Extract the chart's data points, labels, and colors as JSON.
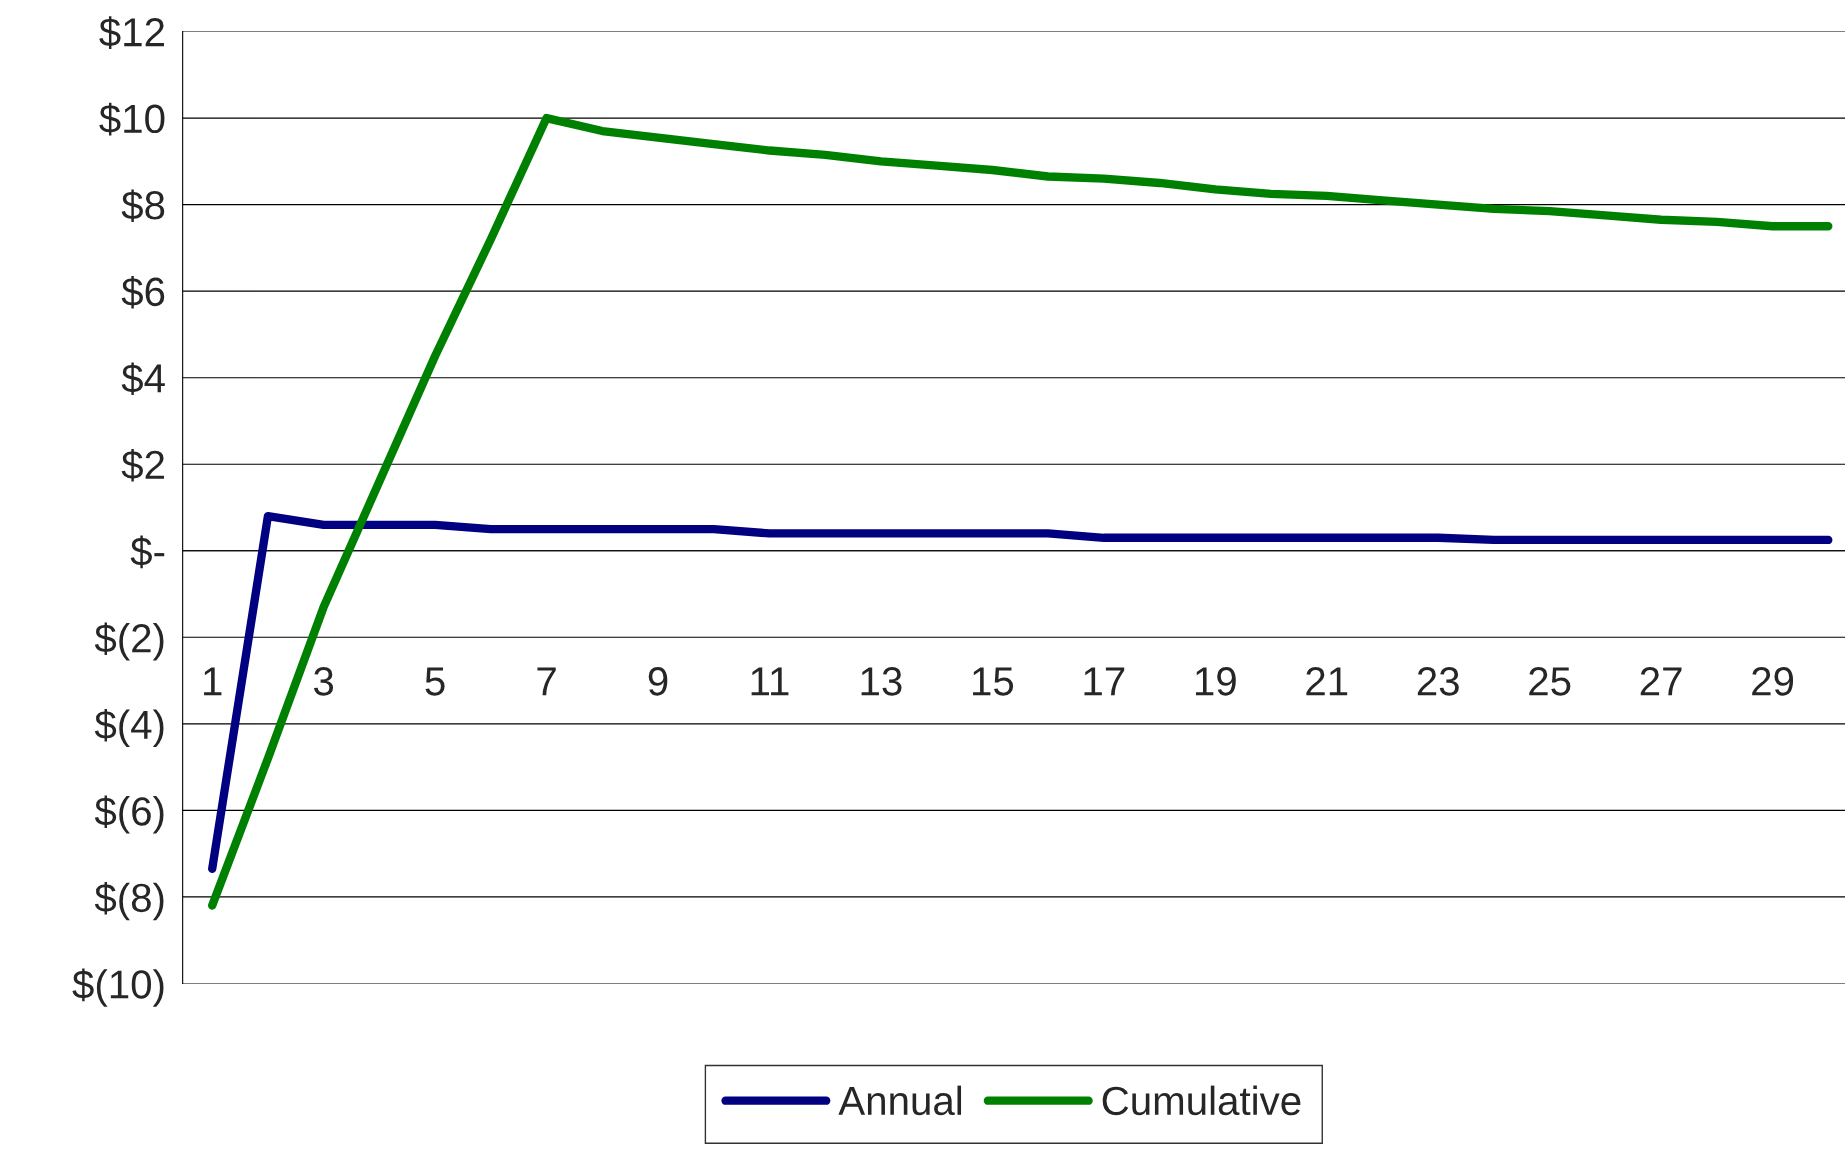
{
  "chart_data": {
    "type": "line",
    "categories": [
      "1",
      null,
      "3",
      null,
      "5",
      null,
      "7",
      null,
      "9",
      null,
      "11",
      null,
      "13",
      null,
      "15",
      null,
      "17",
      null,
      "19",
      null,
      "21",
      null,
      "23",
      null,
      "25",
      null,
      "27",
      null,
      "29",
      null
    ],
    "series": [
      {
        "name": "Annual",
        "color": "#000080",
        "values": [
          -7.35,
          0.8,
          0.6,
          0.6,
          0.6,
          0.5,
          0.5,
          0.5,
          0.5,
          0.5,
          0.4,
          0.4,
          0.4,
          0.4,
          0.4,
          0.4,
          0.3,
          0.3,
          0.3,
          0.3,
          0.3,
          0.3,
          0.3,
          0.25,
          0.25,
          0.25,
          0.25,
          0.25,
          0.25,
          0.25
        ]
      },
      {
        "name": "Cumulative",
        "color": "#008000",
        "values": [
          -8.2,
          -4.8,
          -1.3,
          1.6,
          4.5,
          7.2,
          10.0,
          9.7,
          9.55,
          9.4,
          9.25,
          9.15,
          9.0,
          8.9,
          8.8,
          8.65,
          8.6,
          8.5,
          8.35,
          8.25,
          8.2,
          8.1,
          8.0,
          7.9,
          7.85,
          7.75,
          7.65,
          7.6,
          7.5,
          7.5
        ]
      }
    ],
    "ylim": [
      -10,
      12
    ],
    "yticks": [
      {
        "value": -10,
        "label": "$(10)"
      },
      {
        "value": -8,
        "label": "$(8)"
      },
      {
        "value": -6,
        "label": "$(6)"
      },
      {
        "value": -4,
        "label": "$(4)"
      },
      {
        "value": -2,
        "label": "$(2)"
      },
      {
        "value": 0,
        "label": "$-"
      },
      {
        "value": 2,
        "label": "$2"
      },
      {
        "value": 4,
        "label": "$4"
      },
      {
        "value": 6,
        "label": "$6"
      },
      {
        "value": 8,
        "label": "$8"
      },
      {
        "value": 10,
        "label": "$10"
      },
      {
        "value": 12,
        "label": "$12"
      }
    ],
    "grid": "y",
    "legend": "bottom",
    "marker": "none",
    "line_style": "solid"
  }
}
